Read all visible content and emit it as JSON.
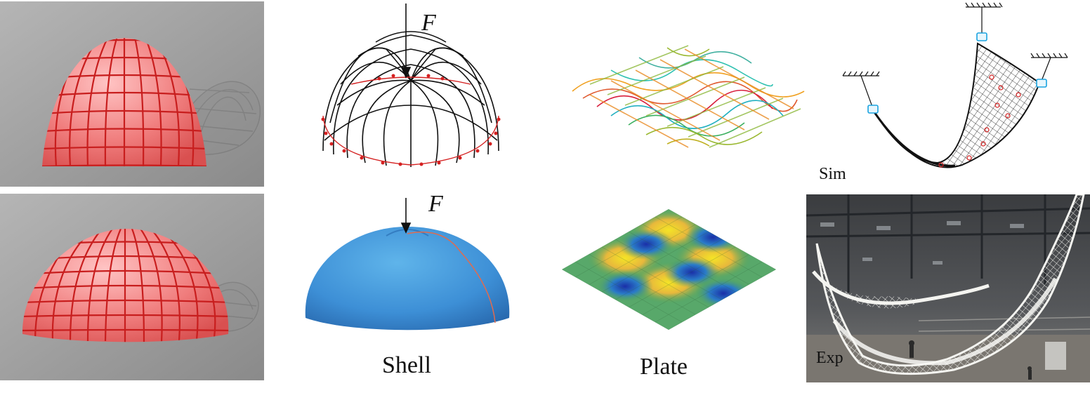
{
  "labels": {
    "force_top": "F",
    "force_bottom": "F",
    "shell": "Shell",
    "plate": "Plate",
    "sim": "Sim",
    "exp": "Exp"
  },
  "colors": {
    "grey_background": "#9b9b9b",
    "sphere_red": "#f07d7d",
    "grid_red": "#c81e1e",
    "shell_blue": "#3d8fd6",
    "net_black": "#111111",
    "node_red": "#d42020",
    "anchor_blue": "#1aa3e0"
  },
  "icons": {
    "force_arrow": "down-arrow-icon",
    "ceiling_anchor": "hatched-anchor-icon"
  }
}
